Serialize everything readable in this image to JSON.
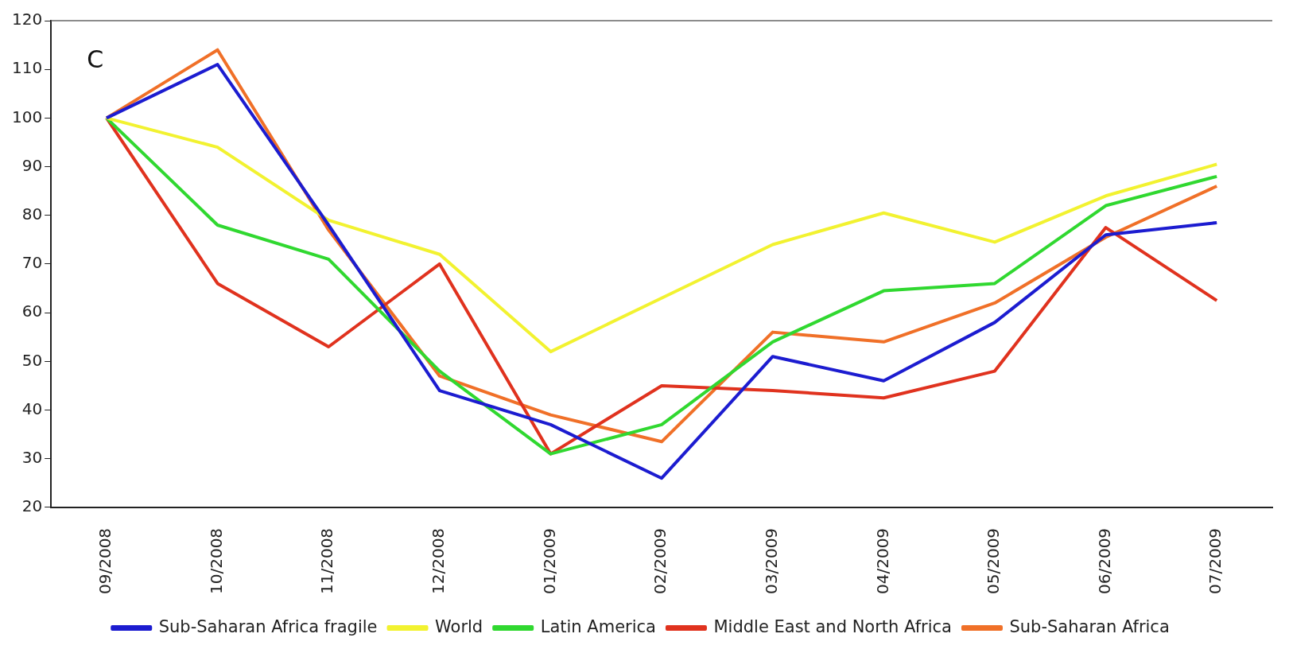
{
  "chart_data": {
    "type": "line",
    "categories": [
      "09/2008",
      "10/2008",
      "11/2008",
      "12/2008",
      "01/2009",
      "02/2009",
      "03/2009",
      "04/2009",
      "05/2009",
      "06/2009",
      "07/2009"
    ],
    "series": [
      {
        "name": "Sub-Saharan Africa fragile",
        "color": "#1c1cd0",
        "values": [
          100,
          111,
          78,
          44,
          37,
          26,
          51,
          46,
          58,
          76,
          78.5
        ]
      },
      {
        "name": "World",
        "color": "#f2f230",
        "values": [
          100,
          94,
          79,
          72,
          52,
          63,
          74,
          80.5,
          74.5,
          84,
          90.5
        ]
      },
      {
        "name": "Latin America",
        "color": "#30d830",
        "values": [
          100,
          78,
          71,
          48,
          31,
          37,
          54,
          64.5,
          66,
          82,
          88
        ]
      },
      {
        "name": "Middle East and North Africa",
        "color": "#e0321e",
        "values": [
          100,
          66,
          53,
          70,
          31,
          45,
          44,
          42.5,
          48,
          77.5,
          62.5
        ]
      },
      {
        "name": "Sub-Saharan Africa",
        "color": "#f07028",
        "values": [
          100,
          114,
          77,
          47,
          39,
          33.5,
          56,
          54,
          62,
          75.5,
          86
        ]
      }
    ],
    "ylim": [
      20,
      120
    ],
    "yticks": [
      20,
      30,
      40,
      50,
      60,
      70,
      80,
      90,
      100,
      110,
      120
    ],
    "grid": false,
    "legend": "bottom",
    "marker": "none",
    "annotations": [
      "C"
    ]
  }
}
